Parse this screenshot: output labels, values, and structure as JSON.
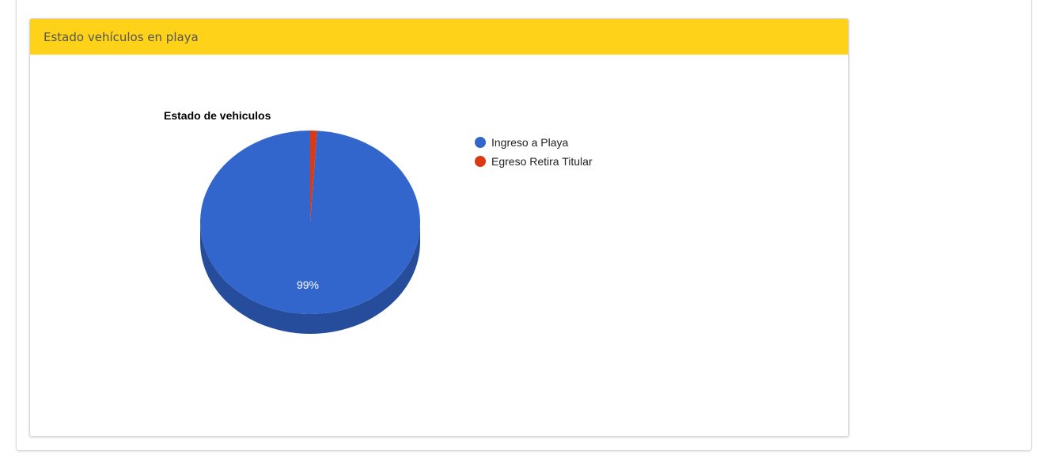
{
  "panel": {
    "title": "Estado vehículos en playa"
  },
  "colors": {
    "header_bg": "#ffd21a",
    "series_1": "#3366cc",
    "series_1_side": "#254d9c",
    "series_2": "#dc3912",
    "series_2_side": "#a52a0d"
  },
  "chart_data": {
    "type": "pie",
    "is3D": true,
    "title": "Estado de vehiculos",
    "legend_position": "right",
    "labels": [
      "Ingreso a Playa",
      "Egreso Retira Titular"
    ],
    "values": [
      99,
      1
    ],
    "slice_labels": [
      "99%",
      ""
    ],
    "colors": [
      "#3366cc",
      "#dc3912"
    ]
  }
}
